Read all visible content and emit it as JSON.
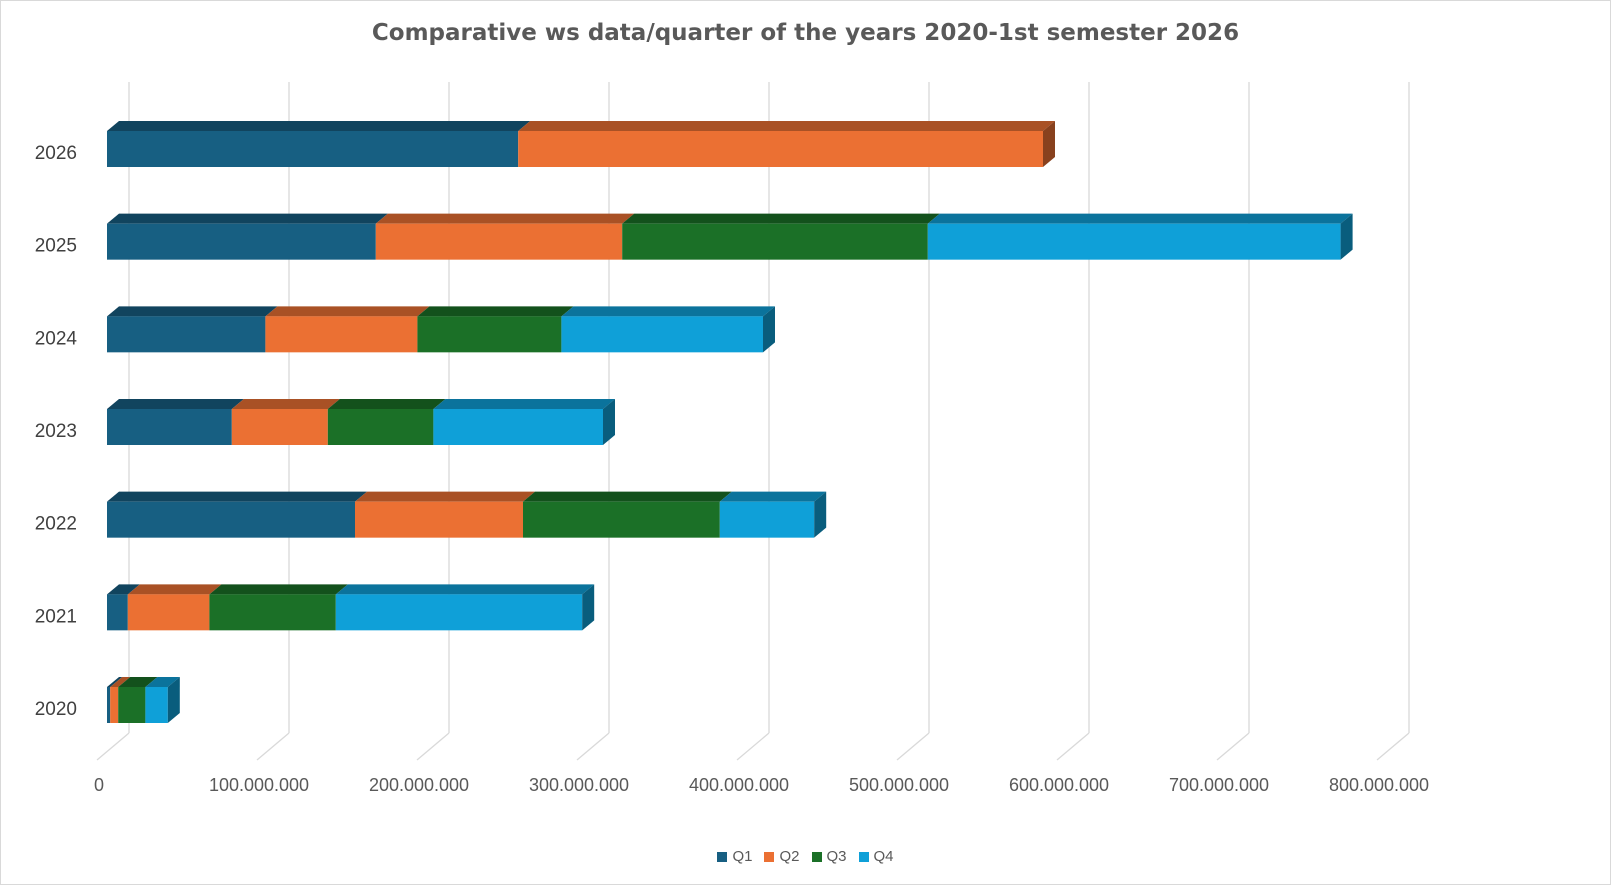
{
  "chart_data": {
    "type": "bar",
    "orientation": "horizontal",
    "stacked": true,
    "style": "3d",
    "title": "Comparative ws data/quarter of the years 2020-1st semester 2026",
    "xlabel": "",
    "ylabel": "",
    "xlim": [
      0,
      800000000
    ],
    "x_ticks": [
      "0",
      "100.000.000",
      "200.000.000",
      "300.000.000",
      "400.000.000",
      "500.000.000",
      "600.000.000",
      "700.000.000",
      "800.000.000"
    ],
    "grid": true,
    "legend_position": "bottom",
    "categories": [
      "2020",
      "2021",
      "2022",
      "2023",
      "2024",
      "2025",
      "2026"
    ],
    "series": [
      {
        "name": "Q1",
        "color": "#175f82",
        "values": [
          2000000,
          13000000,
          155000000,
          78000000,
          99000000,
          168000000,
          257000000
        ]
      },
      {
        "name": "Q2",
        "color": "#eb7033",
        "values": [
          5000000,
          51000000,
          105000000,
          60000000,
          95000000,
          154000000,
          328000000
        ]
      },
      {
        "name": "Q3",
        "color": "#1b7027",
        "values": [
          17000000,
          79000000,
          123000000,
          66000000,
          90000000,
          191000000,
          0
        ]
      },
      {
        "name": "Q4",
        "color": "#0fa0d8",
        "values": [
          14000000,
          154000000,
          59000000,
          106000000,
          126000000,
          258000000,
          0
        ]
      }
    ]
  }
}
